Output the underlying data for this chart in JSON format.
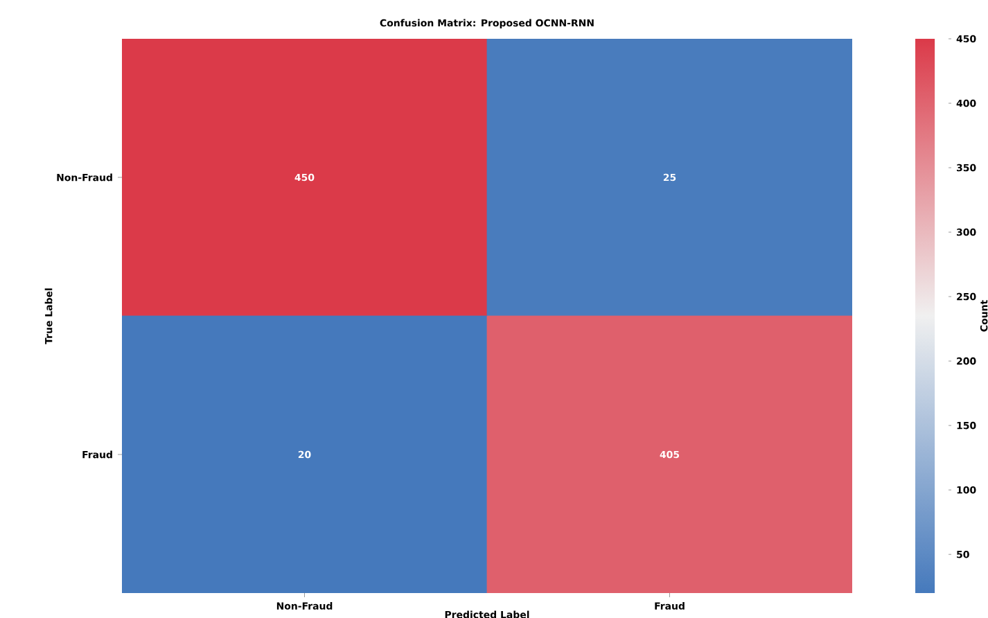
{
  "chart_data": {
    "type": "heatmap",
    "title": "Confusion Matrix: Proposed OCNN-RNN",
    "xlabel": "Predicted Label",
    "ylabel": "True Label",
    "clabel": "Count",
    "categories": [
      "Non-Fraud",
      "Fraud"
    ],
    "y_categories": [
      "Non-Fraud",
      "Fraud"
    ],
    "cells": [
      [
        450,
        25
      ],
      [
        20,
        405
      ]
    ],
    "clim": [
      20,
      450
    ],
    "cticks": [
      50,
      100,
      150,
      200,
      250,
      300,
      350,
      400,
      450
    ],
    "data_labels": true
  }
}
